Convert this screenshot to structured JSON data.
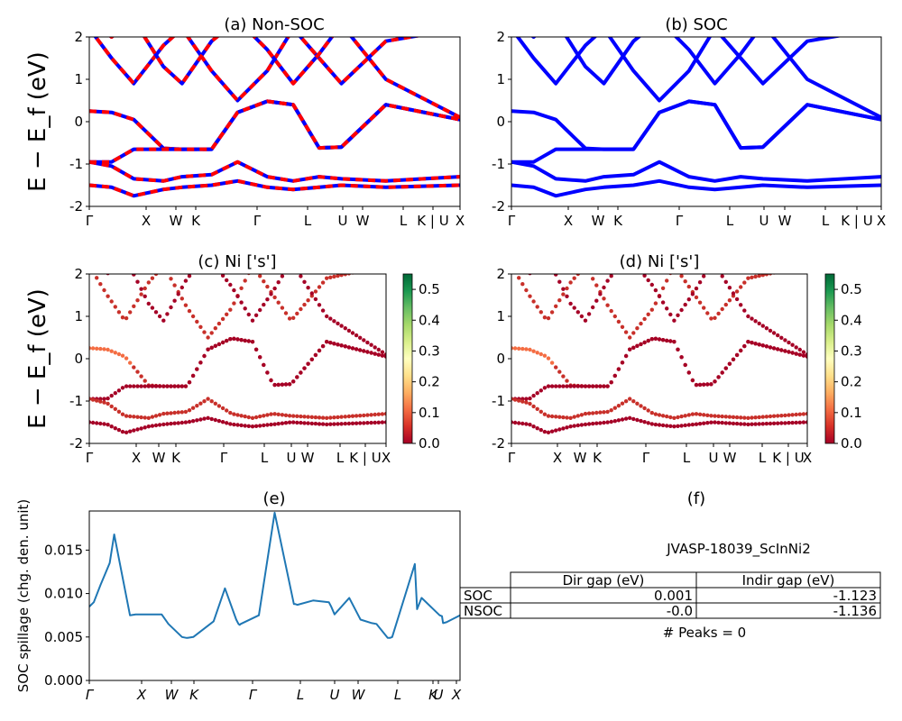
{
  "figure": {
    "ylabel_band": "E − E_f (eV)",
    "kpath_labels": [
      "Γ",
      "X",
      "W",
      "K",
      "Γ",
      "L",
      "U",
      "W",
      "L",
      "K | U",
      "X"
    ]
  },
  "chart_data": [
    {
      "id": "a",
      "type": "line",
      "title": "(a) Non-SOC",
      "ylabel": "E − E_f (eV)",
      "ylim": [
        -2,
        2
      ],
      "yticks": [
        -2,
        -1,
        0,
        1,
        2
      ],
      "xticks": [
        "Γ",
        "X",
        "W",
        "K",
        "Γ",
        "L",
        "U",
        "W",
        "L",
        "K | U",
        "X"
      ],
      "series": [
        {
          "color": "#0000ff",
          "style": "solid",
          "bands": [
            [
              0.25,
              0.22,
              0.05,
              -0.63,
              -0.65,
              -0.65,
              0.22,
              0.48,
              0.4,
              -0.62,
              -0.6,
              0.4,
              0.05
            ],
            [
              -0.95,
              -0.95,
              -0.65,
              -0.65,
              -0.65,
              -0.65,
              0.22,
              0.48,
              0.4,
              -0.62,
              -0.6,
              0.4,
              0.05
            ],
            [
              -0.95,
              -1.05,
              -1.35,
              -1.4,
              -1.3,
              -1.25,
              -0.95,
              -1.3,
              -1.4,
              -1.3,
              -1.35,
              -1.4,
              -1.3
            ],
            [
              -1.5,
              -1.55,
              -1.75,
              -1.6,
              -1.55,
              -1.5,
              -1.4,
              -1.55,
              -1.6,
              -1.55,
              -1.5,
              -1.55,
              -1.5
            ]
          ]
        },
        {
          "color": "#ff0000",
          "style": "dashed",
          "same_as": "blue"
        }
      ]
    },
    {
      "id": "b",
      "type": "line",
      "title": "(b) SOC",
      "ylim": [
        -2,
        2
      ],
      "yticks": [
        -2,
        -1,
        0,
        1,
        2
      ],
      "xticks": [
        "Γ",
        "X",
        "W",
        "K",
        "Γ",
        "L",
        "U",
        "W",
        "L",
        "K | U",
        "X"
      ],
      "series": [
        {
          "color": "#0000ff",
          "style": "solid"
        }
      ]
    },
    {
      "id": "c",
      "type": "scatter",
      "title": "(c)  Ni ['s']",
      "ylabel": "E − E_f (eV)",
      "ylim": [
        -2,
        2
      ],
      "yticks": [
        -2,
        -1,
        0,
        1,
        2
      ],
      "xticks": [
        "Γ",
        "X",
        "W",
        "K",
        "Γ",
        "L",
        "U",
        "W",
        "L",
        "K | U",
        "X"
      ],
      "colorbar": {
        "cmap": "RdYlGn",
        "range": [
          0.0,
          0.55
        ],
        "ticks": [
          "0.0",
          "0.1",
          "0.2",
          "0.3",
          "0.4",
          "0.5"
        ]
      }
    },
    {
      "id": "d",
      "type": "scatter",
      "title": "(d) Ni ['s']",
      "ylim": [
        -2,
        2
      ],
      "yticks": [
        -2,
        -1,
        0,
        1,
        2
      ],
      "xticks": [
        "Γ",
        "X",
        "W",
        "K",
        "Γ",
        "L",
        "U",
        "W",
        "L",
        "K | U",
        "X"
      ],
      "colorbar": {
        "cmap": "RdYlGn",
        "range": [
          0.0,
          0.55
        ],
        "ticks": [
          "0.0",
          "0.1",
          "0.2",
          "0.3",
          "0.4",
          "0.5"
        ]
      }
    },
    {
      "id": "e",
      "type": "line",
      "title": "(e)",
      "ylabel": "SOC spillage (chg. den. unit)",
      "ylim": [
        0,
        0.0195
      ],
      "yticks": [
        "0.000",
        "0.005",
        "0.010",
        "0.015"
      ],
      "xticks": [
        "Γ",
        "X",
        "W",
        "K",
        "Γ",
        "L",
        "U",
        "W",
        "L",
        "K",
        "U",
        "X"
      ],
      "series": [
        {
          "name": "spillage",
          "color": "#1f77b4",
          "x": [
            0,
            0.2,
            0.5,
            0.9,
            1.1,
            1.8,
            2.05,
            2.1,
            3.2,
            3.5,
            4.1,
            4.3,
            4.35,
            4.6,
            5.5,
            6.0,
            6.5,
            6.6,
            6.65,
            6.7,
            7.5,
            8.2,
            9.05,
            9.1,
            9.2,
            9.9,
            10.6,
            10.7,
            10.85,
            11.5,
            11.9,
            12.0,
            12.5,
            12.7,
            13.2,
            13.3,
            13.4,
            14.4,
            14.5,
            14.7,
            15.5,
            15.6,
            15.65,
            15.8,
            16.4
          ],
          "values": [
            0.0085,
            0.009,
            0.011,
            0.0135,
            0.0168,
            0.0075,
            0.0076,
            0.0076,
            0.0076,
            0.0065,
            0.005,
            0.0049,
            0.0049,
            0.005,
            0.0068,
            0.0106,
            0.007,
            0.0065,
            0.0064,
            0.0065,
            0.0075,
            0.0193,
            0.0088,
            0.0088,
            0.0087,
            0.0092,
            0.009,
            0.0085,
            0.0076,
            0.0095,
            0.0075,
            0.007,
            0.0066,
            0.0065,
            0.0049,
            0.0049,
            0.005,
            0.0134,
            0.0082,
            0.0095,
            0.0075,
            0.0074,
            0.0066,
            0.0067,
            0.0075
          ]
        }
      ]
    }
  ],
  "panel_f": {
    "title": "(f)",
    "material": "JVASP-18039_ScInNi2",
    "headers": [
      "Dir gap (eV)",
      "Indir gap (eV)"
    ],
    "rows": [
      {
        "label": "SOC",
        "dir": "0.001",
        "indir": "-1.123"
      },
      {
        "label": "NSOC",
        "dir": "-0.0",
        "indir": "-1.136"
      }
    ],
    "peaks": "# Peaks = 0"
  }
}
